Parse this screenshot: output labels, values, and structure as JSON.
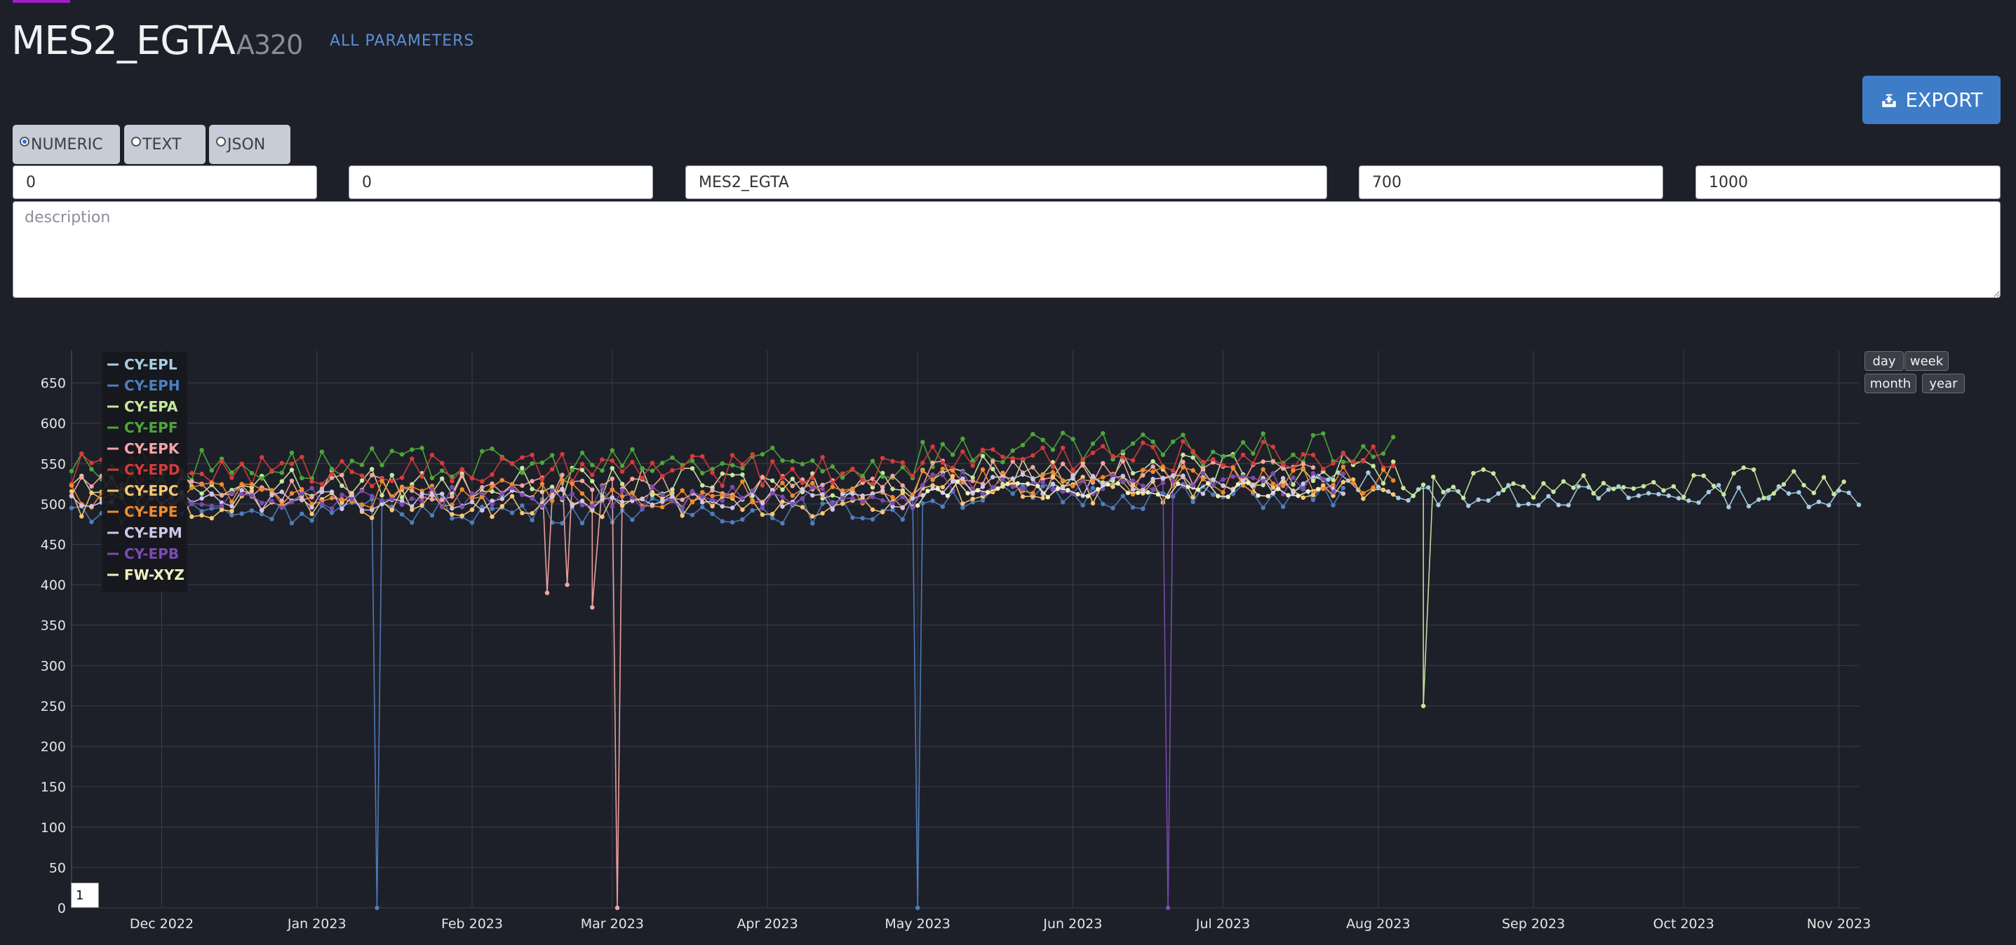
{
  "header": {
    "title": "MES2_EGTA",
    "subtitle": "A320",
    "all_parameters_link": "ALL PARAMETERS"
  },
  "toolbar": {
    "export_label": "EXPORT"
  },
  "type_options": [
    {
      "label": "NUMERIC",
      "selected": true
    },
    {
      "label": "TEXT",
      "selected": false
    },
    {
      "label": "JSON",
      "selected": false
    }
  ],
  "fields": {
    "f1": {
      "value": "0"
    },
    "f2": {
      "value": "0"
    },
    "name": {
      "value": "MES2_EGTA"
    },
    "lower": {
      "value": "700"
    },
    "upper": {
      "value": "1000"
    },
    "description_placeholder": "description"
  },
  "range_buttons": {
    "day": "day",
    "week": "week",
    "month": "month",
    "year": "year"
  },
  "page_input": {
    "value": "1"
  },
  "colors": {
    "background": "#1e2029",
    "accent": "#3f7cc7"
  },
  "chart_data": {
    "type": "line",
    "x_ticks": [
      "Dec 2022",
      "Jan 2023",
      "Feb 2023",
      "Mar 2023",
      "Apr 2023",
      "May 2023",
      "Jun 2023",
      "Jul 2023",
      "Aug 2023",
      "Sep 2023",
      "Oct 2023",
      "Nov 2023"
    ],
    "y_ticks": [
      0,
      50,
      100,
      150,
      200,
      250,
      300,
      350,
      400,
      450,
      500,
      550,
      600,
      650
    ],
    "ylim": [
      0,
      690
    ],
    "xlim": [
      "2022-11-13",
      "2023-11-05"
    ],
    "grid": true,
    "legend_position": "top-left",
    "series": [
      {
        "name": "CY-EPL",
        "color": "#a6cee3",
        "start": "2023-07-20",
        "end": "2023-11-05",
        "base": 510,
        "amp": 14,
        "dips": []
      },
      {
        "name": "CY-EPH",
        "color": "#4d7ebd",
        "start": "2022-11-13",
        "end": "2023-07-25",
        "base": 492,
        "amp": 16,
        "dips": [
          [
            "2023-01-13",
            0
          ],
          [
            "2023-05-01",
            0
          ]
        ]
      },
      {
        "name": "CY-EPA",
        "color": "#c7e89c",
        "start": "2022-11-13",
        "end": "2023-11-03",
        "base": 525,
        "amp": 20,
        "dips": [
          [
            "2023-08-10",
            250
          ]
        ]
      },
      {
        "name": "CY-EPF",
        "color": "#4ea63b",
        "start": "2022-11-13",
        "end": "2023-08-05",
        "base": 548,
        "amp": 22,
        "dips": []
      },
      {
        "name": "CY-EPK",
        "color": "#f5a5a3",
        "start": "2022-11-13",
        "end": "2023-07-20",
        "base": 520,
        "amp": 16,
        "dips": [
          [
            "2023-02-16",
            390
          ],
          [
            "2023-02-20",
            400
          ],
          [
            "2023-02-25",
            372
          ],
          [
            "2023-03-02",
            0
          ]
        ]
      },
      {
        "name": "CY-EPD",
        "color": "#d83a3a",
        "start": "2022-11-13",
        "end": "2023-08-05",
        "base": 542,
        "amp": 20,
        "dips": []
      },
      {
        "name": "CY-EPC",
        "color": "#f9c773",
        "start": "2022-11-13",
        "end": "2023-08-05",
        "base": 500,
        "amp": 18,
        "dips": []
      },
      {
        "name": "CY-EPE",
        "color": "#f28a2c",
        "start": "2022-11-13",
        "end": "2023-08-05",
        "base": 512,
        "amp": 18,
        "dips": []
      },
      {
        "name": "CY-EPM",
        "color": "#cfc5ea",
        "start": "2022-11-13",
        "end": "2023-07-25",
        "base": 505,
        "amp": 14,
        "dips": []
      },
      {
        "name": "CY-EPB",
        "color": "#7a4cb1",
        "start": "2022-12-01",
        "end": "2023-07-25",
        "base": 508,
        "amp": 14,
        "dips": [
          [
            "2023-06-20",
            0
          ]
        ]
      },
      {
        "name": "FW-XYZ",
        "color": "#f0f0c0",
        "start": "2023-05-01",
        "end": "2023-07-20",
        "base": 500,
        "amp": 10,
        "dips": []
      }
    ]
  }
}
